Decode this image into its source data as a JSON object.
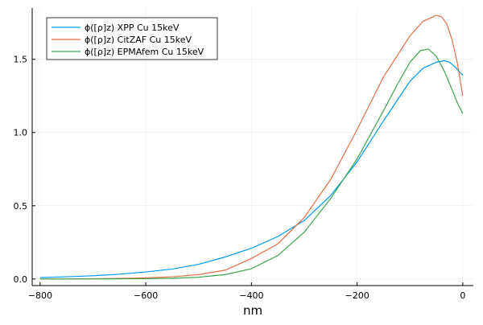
{
  "chart_data": {
    "type": "line",
    "title": "",
    "xlabel": "nm",
    "ylabel": "",
    "xlim": [
      -815,
      20
    ],
    "ylim": [
      -0.045,
      1.85
    ],
    "x_ticks": [
      -800,
      -600,
      -400,
      -200,
      0
    ],
    "x_tick_labels": [
      "−800",
      "−600",
      "−400",
      "−200",
      "0"
    ],
    "y_ticks": [
      0.0,
      0.5,
      1.0,
      1.5
    ],
    "y_tick_labels": [
      "0.0",
      "0.5",
      "1.0",
      "1.5"
    ],
    "grid": true,
    "legend_position": "top-left",
    "series": [
      {
        "name": "ϕ([ρ]z) XPP Cu 15keV",
        "color": "#009AFA",
        "x": [
          -800,
          -750,
          -700,
          -650,
          -600,
          -550,
          -500,
          -450,
          -400,
          -350,
          -300,
          -250,
          -200,
          -150,
          -100,
          -75,
          -50,
          -35,
          -25,
          -15,
          0
        ],
        "y": [
          0.01,
          0.015,
          0.022,
          0.033,
          0.048,
          0.068,
          0.1,
          0.15,
          0.21,
          0.29,
          0.4,
          0.57,
          0.8,
          1.08,
          1.35,
          1.44,
          1.48,
          1.49,
          1.48,
          1.45,
          1.39
        ]
      },
      {
        "name": "ϕ([ρ]z) CitZAF Cu 15keV",
        "color": "#E36F47",
        "x": [
          -800,
          -700,
          -650,
          -600,
          -550,
          -500,
          -450,
          -400,
          -350,
          -300,
          -250,
          -200,
          -150,
          -100,
          -75,
          -50,
          -40,
          -30,
          -20,
          -10,
          0
        ],
        "y": [
          0.0,
          0.002,
          0.004,
          0.008,
          0.015,
          0.03,
          0.06,
          0.14,
          0.24,
          0.42,
          0.68,
          1.02,
          1.38,
          1.66,
          1.76,
          1.8,
          1.79,
          1.74,
          1.63,
          1.47,
          1.25
        ]
      },
      {
        "name": "ϕ([ρ]z) EPMAfem Cu 15keV",
        "color": "#3EA44E",
        "x": [
          -800,
          -700,
          -600,
          -550,
          -500,
          -450,
          -400,
          -350,
          -300,
          -250,
          -200,
          -150,
          -125,
          -100,
          -80,
          -65,
          -50,
          -35,
          -20,
          -10,
          0
        ],
        "y": [
          0.0,
          0.0,
          0.002,
          0.005,
          0.012,
          0.03,
          0.07,
          0.16,
          0.32,
          0.55,
          0.82,
          1.15,
          1.32,
          1.48,
          1.56,
          1.57,
          1.52,
          1.42,
          1.29,
          1.2,
          1.13
        ]
      }
    ]
  }
}
